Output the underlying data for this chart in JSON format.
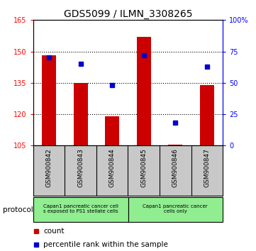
{
  "title": "GDS5099 / ILMN_3308265",
  "samples": [
    "GSM900842",
    "GSM900843",
    "GSM900844",
    "GSM900845",
    "GSM900846",
    "GSM900847"
  ],
  "bar_values": [
    148,
    135,
    119,
    157,
    105.5,
    134
  ],
  "bar_base": 105,
  "percentile_values": [
    70,
    65,
    48,
    72,
    18,
    63
  ],
  "ylim_left": [
    105,
    165
  ],
  "ylim_right": [
    0,
    100
  ],
  "yticks_left": [
    105,
    120,
    135,
    150,
    165
  ],
  "yticks_right": [
    0,
    25,
    50,
    75,
    100
  ],
  "ytick_labels_right": [
    "0",
    "25",
    "50",
    "75",
    "100%"
  ],
  "bar_color": "#CC0000",
  "point_color": "#0000CC",
  "legend_count_label": "count",
  "legend_pct_label": "percentile rank within the sample",
  "protocol_label": "protocol",
  "bg_color": "#FFFFFF",
  "plot_bg": "#FFFFFF",
  "sample_area_bg": "#C8C8C8",
  "protocol_green": "#90EE90",
  "group1_label_line1": "Capan1 pancreatic cancer cell",
  "group1_label_line2": "s exposed to PS1 stellate cells",
  "group2_label_line1": "Capan1 pancreatic cancer",
  "group2_label_line2": "cells only"
}
